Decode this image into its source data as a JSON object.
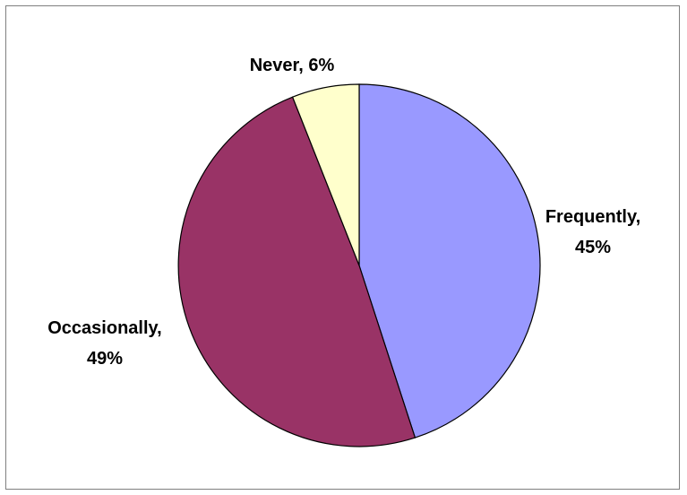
{
  "chart_data": {
    "type": "pie",
    "title": "",
    "slices": [
      {
        "category": "Frequently",
        "value": 45,
        "label_line1": "Frequently,",
        "label_line2": "45%",
        "color": "#9999FF"
      },
      {
        "category": "Occasionally",
        "value": 49,
        "label_line1": "Occasionally,",
        "label_line2": "49%",
        "color": "#993366"
      },
      {
        "category": "Never",
        "value": 6,
        "label_line1": "Never, 6%",
        "label_line2": "",
        "color": "#FFFFCC"
      }
    ],
    "legend": "none",
    "start_angle": "12 o'clock",
    "direction": "clockwise"
  }
}
